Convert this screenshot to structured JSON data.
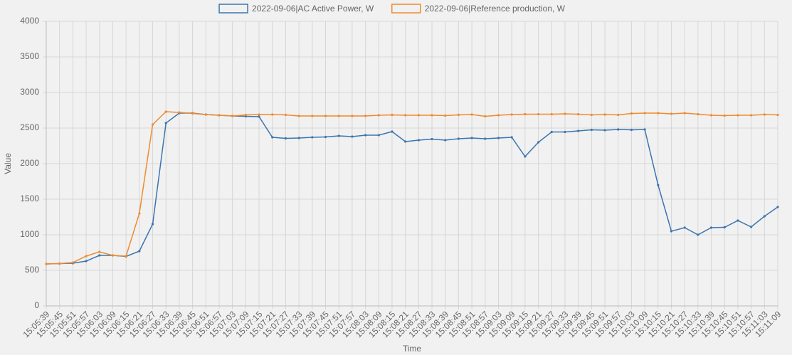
{
  "chart_data": {
    "type": "line",
    "x_label": "Time",
    "y_label": "Value",
    "categories": [
      "15:05:39",
      "15:05:45",
      "15:05:51",
      "15:05:57",
      "15:06:03",
      "15:06:09",
      "15:06:15",
      "15:06:21",
      "15:06:27",
      "15:06:33",
      "15:06:39",
      "15:06:45",
      "15:06:51",
      "15:06:57",
      "15:07:03",
      "15:07:09",
      "15:07:15",
      "15:07:21",
      "15:07:27",
      "15:07:33",
      "15:07:39",
      "15:07:45",
      "15:07:51",
      "15:07:57",
      "15:08:03",
      "15:08:09",
      "15:08:15",
      "15:08:21",
      "15:08:27",
      "15:08:33",
      "15:08:39",
      "15:08:45",
      "15:08:51",
      "15:08:57",
      "15:09:03",
      "15:09:09",
      "15:09:15",
      "15:09:21",
      "15:09:27",
      "15:09:33",
      "15:09:39",
      "15:09:45",
      "15:09:51",
      "15:09:57",
      "15:10:03",
      "15:10:09",
      "15:10:15",
      "15:10:21",
      "15:10:27",
      "15:10:33",
      "15:10:39",
      "15:10:45",
      "15:10:51",
      "15:10:57",
      "15:11:03",
      "15:11:09"
    ],
    "series": [
      {
        "name": "2022-09-06|AC Active Power, W",
        "color": "#3b75af",
        "values": [
          590,
          595,
          600,
          630,
          710,
          710,
          695,
          770,
          1150,
          2570,
          2710,
          2710,
          2690,
          2680,
          2670,
          2665,
          2660,
          2370,
          2355,
          2360,
          2370,
          2375,
          2390,
          2380,
          2400,
          2400,
          2450,
          2310,
          2330,
          2345,
          2330,
          2350,
          2360,
          2350,
          2360,
          2370,
          2100,
          2300,
          2445,
          2445,
          2460,
          2475,
          2470,
          2480,
          2475,
          2480,
          1700,
          1050,
          1100,
          1000,
          1100,
          1105,
          1200,
          1110,
          1260,
          1390
        ]
      },
      {
        "name": "2022-09-06|Reference production, W",
        "color": "#ef8a2e",
        "values": [
          590,
          595,
          610,
          700,
          760,
          710,
          700,
          1300,
          2550,
          2730,
          2720,
          2705,
          2690,
          2680,
          2670,
          2685,
          2690,
          2690,
          2685,
          2670,
          2670,
          2670,
          2670,
          2670,
          2670,
          2680,
          2685,
          2680,
          2680,
          2680,
          2675,
          2685,
          2690,
          2665,
          2680,
          2690,
          2695,
          2695,
          2695,
          2700,
          2695,
          2685,
          2690,
          2685,
          2705,
          2710,
          2710,
          2700,
          2710,
          2695,
          2680,
          2675,
          2680,
          2680,
          2690,
          2685
        ]
      }
    ],
    "ylim": [
      0,
      4000
    ],
    "yticks": [
      0,
      500,
      1000,
      1500,
      2000,
      2500,
      3000,
      3500,
      4000
    ],
    "grid": true,
    "legend": "top"
  }
}
